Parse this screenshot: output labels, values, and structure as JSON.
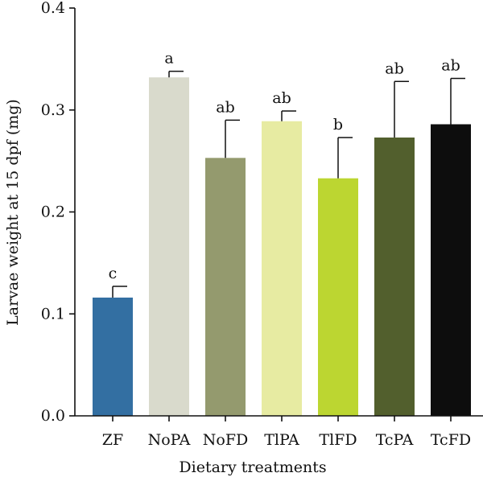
{
  "chart_data": {
    "type": "bar",
    "title": "",
    "xlabel": "Dietary treatments",
    "ylabel": "Larvae weight at 15 dpf (mg)",
    "ylim": [
      0,
      0.4
    ],
    "yticks": [
      "0.0",
      "0.1",
      "0.2",
      "0.3",
      "0.4"
    ],
    "ytick_values": [
      0.0,
      0.1,
      0.2,
      0.3,
      0.4
    ],
    "grid": false,
    "categories": [
      "ZF",
      "NoPA",
      "NoFD",
      "TlPA",
      "TlFD",
      "TcPA",
      "TcFD"
    ],
    "values": [
      0.116,
      0.332,
      0.253,
      0.289,
      0.233,
      0.273,
      0.286
    ],
    "error_upper": [
      0.011,
      0.006,
      0.037,
      0.01,
      0.04,
      0.055,
      0.045
    ],
    "significance": [
      "c",
      "a",
      "ab",
      "ab",
      "b",
      "ab",
      "ab"
    ],
    "colors": [
      "#336FA2",
      "#D9DACC",
      "#949A6E",
      "#E7EBA2",
      "#BCD631",
      "#525F2D",
      "#0D0D0D"
    ]
  }
}
